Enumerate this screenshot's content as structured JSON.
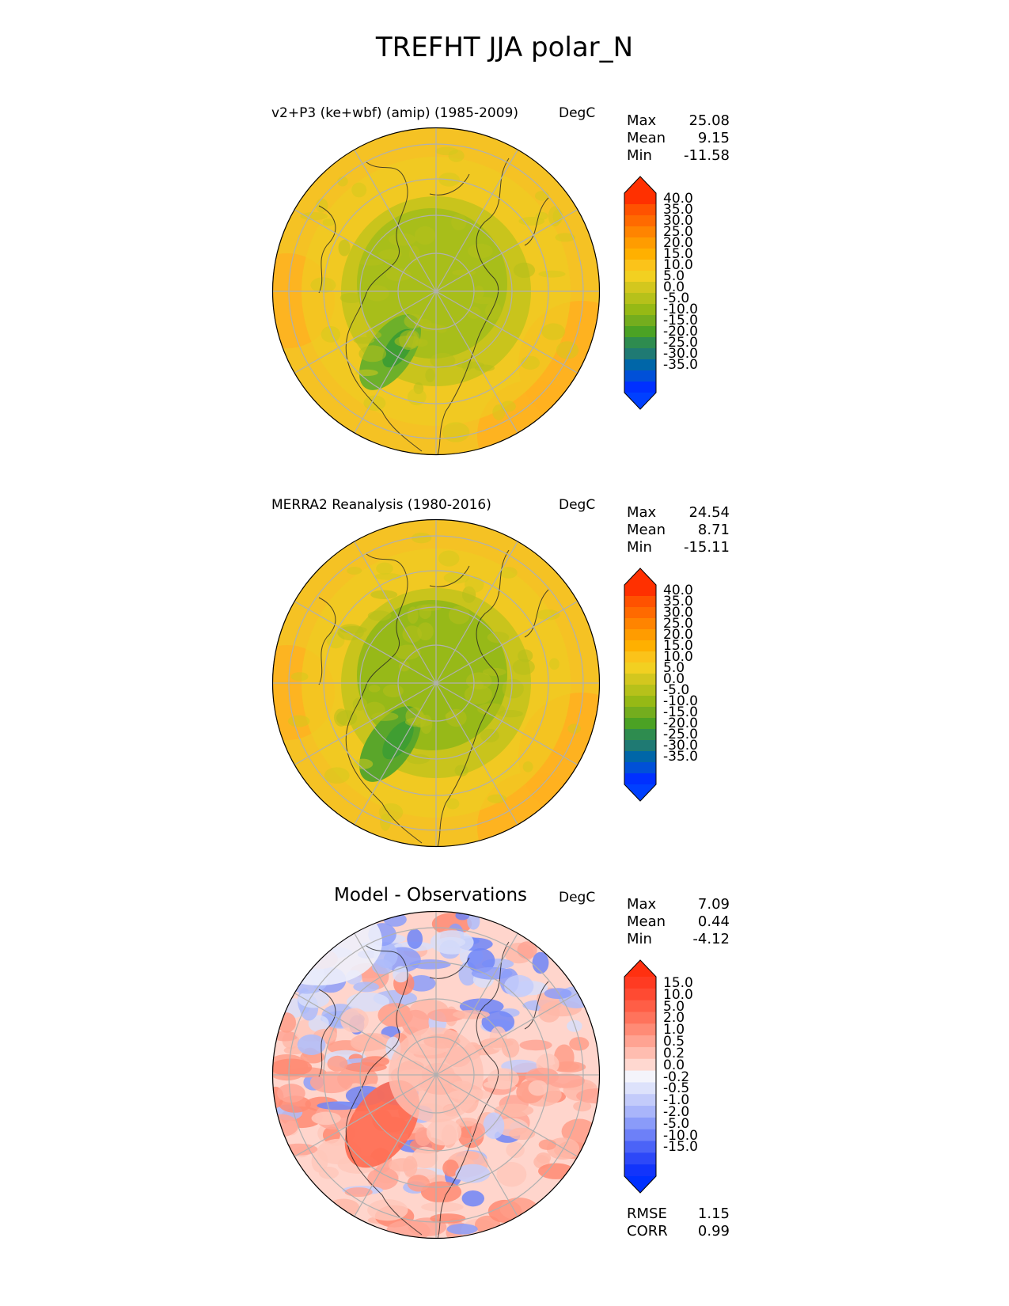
{
  "figure": {
    "title": "TREFHT JJA polar_N"
  },
  "panels": [
    {
      "title": "v2+P3 (ke+wbf) (amip) (1985-2009)",
      "units": "DegC",
      "stats": {
        "max_label": "Max",
        "max": "25.08",
        "mean_label": "Mean",
        "mean": "9.15",
        "min_label": "Min",
        "min": "-11.58"
      },
      "colorbar": {
        "labels": [
          "40.0",
          "35.0",
          "30.0",
          "25.0",
          "20.0",
          "15.0",
          "10.0",
          "5.0",
          "0.0",
          "-5.0",
          "-10.0",
          "-15.0",
          "-20.0",
          "-25.0",
          "-30.0",
          "-35.0"
        ],
        "colors": [
          "#ff3000",
          "#ff5200",
          "#ff6a00",
          "#ff8400",
          "#ff9c00",
          "#ffb000",
          "#fbc31a",
          "#f2d021",
          "#d3c71e",
          "#b6c11a",
          "#96b915",
          "#74ad1e",
          "#4ba224",
          "#2e8c4f",
          "#1f7a73",
          "#0066a8",
          "#0050d8",
          "#0030ff"
        ],
        "top_color": "#ff3000",
        "bottom_color": "#0040ff"
      },
      "field": "model"
    },
    {
      "title": "MERRA2 Reanalysis (1980-2016)",
      "units": "DegC",
      "stats": {
        "max_label": "Max",
        "max": "24.54",
        "mean_label": "Mean",
        "mean": "8.71",
        "min_label": "Min",
        "min": "-15.11"
      },
      "colorbar": {
        "labels": [
          "40.0",
          "35.0",
          "30.0",
          "25.0",
          "20.0",
          "15.0",
          "10.0",
          "5.0",
          "0.0",
          "-5.0",
          "-10.0",
          "-15.0",
          "-20.0",
          "-25.0",
          "-30.0",
          "-35.0"
        ],
        "colors": [
          "#ff3000",
          "#ff5200",
          "#ff6a00",
          "#ff8400",
          "#ff9c00",
          "#ffb000",
          "#fbc31a",
          "#f2d021",
          "#d3c71e",
          "#b6c11a",
          "#96b915",
          "#74ad1e",
          "#4ba224",
          "#2e8c4f",
          "#1f7a73",
          "#0066a8",
          "#0050d8",
          "#0030ff"
        ],
        "top_color": "#ff3000",
        "bottom_color": "#0040ff"
      },
      "field": "obs"
    },
    {
      "title": "Model - Observations",
      "units": "DegC",
      "stats": {
        "max_label": "Max",
        "max": "7.09",
        "mean_label": "Mean",
        "mean": "0.44",
        "min_label": "Min",
        "min": "-4.12"
      },
      "colorbar": {
        "labels": [
          "15.0",
          "10.0",
          "5.0",
          "2.0",
          "1.0",
          "0.5",
          "0.2",
          "0.0",
          "-0.2",
          "-0.5",
          "-1.0",
          "-2.0",
          "-5.0",
          "-10.0",
          "-15.0"
        ],
        "colors": [
          "#ff3b22",
          "#ff4a32",
          "#ff5e46",
          "#ff735c",
          "#ff8b76",
          "#ffa392",
          "#ffbdb0",
          "#ffd8d0",
          "#f4f4fb",
          "#dde2fb",
          "#c3cbfa",
          "#a9b5fa",
          "#8a9bf9",
          "#6d80f8",
          "#4b63f7",
          "#2d48f8",
          "#1234fb"
        ],
        "top_color": "#ff3010",
        "bottom_color": "#0030ff"
      },
      "metrics": {
        "rmse_label": "RMSE",
        "rmse": "1.15",
        "corr_label": "CORR",
        "corr": "0.99"
      },
      "field": "diff"
    }
  ]
}
